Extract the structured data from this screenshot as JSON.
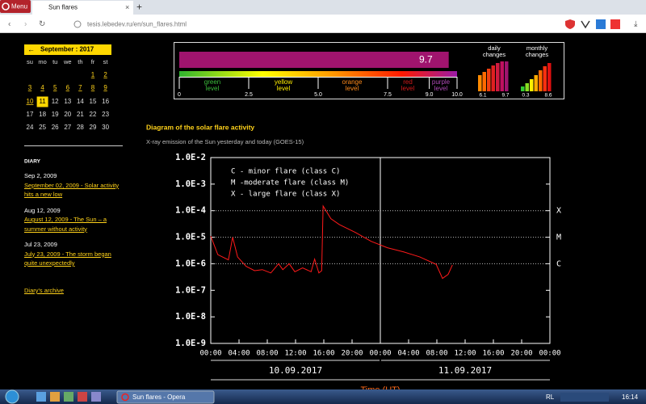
{
  "browser": {
    "menu": "Menu",
    "tab_title": "Sun flares",
    "new_tab": "+",
    "url": "tesis.lebedev.ru/en/sun_flares.html"
  },
  "calendar": {
    "title": "September : 2017",
    "weekdays": [
      "su",
      "mo",
      "tu",
      "we",
      "th",
      "fr",
      "st"
    ],
    "weeks": [
      [
        null,
        null,
        null,
        null,
        null,
        "1",
        "2"
      ],
      [
        "3",
        "4",
        "5",
        "6",
        "7",
        "8",
        "9"
      ],
      [
        "10",
        "11",
        "12",
        "13",
        "14",
        "15",
        "16"
      ],
      [
        "17",
        "18",
        "19",
        "20",
        "21",
        "22",
        "23"
      ],
      [
        "24",
        "25",
        "26",
        "27",
        "28",
        "29",
        "30"
      ]
    ],
    "linked_days": [
      1,
      2,
      3,
      4,
      5,
      6,
      7,
      8,
      9,
      10
    ],
    "current_day": 11
  },
  "diary": {
    "heading": "DIARY",
    "entries": [
      {
        "date": "Sep 2, 2009",
        "title": "September 02, 2009 - Solar activity hits a new low"
      },
      {
        "date": "Aug 12, 2009",
        "title": "August 12, 2009 - The Sun – a summer without activity"
      },
      {
        "date": "Jul 23, 2009",
        "title": "July 23, 2009 - The storm began quite unexpectedly"
      }
    ],
    "archive": "Diary's archive"
  },
  "index_panel": {
    "value": 9.7,
    "lim": [
      0,
      10
    ],
    "ticks": [
      0,
      2.5,
      {
        "value": 5,
        "label": "5.0"
      },
      7.5,
      {
        "value": 9,
        "label": "9.0"
      },
      {
        "value": 10,
        "label": "10.0"
      }
    ],
    "levels": [
      "green level",
      "yellow level",
      "orange level",
      "red level",
      "purple level"
    ],
    "daily": {
      "label": "daily changes",
      "min": 6.1,
      "max": 9.7
    },
    "monthly": {
      "label": "monthly changes",
      "min": 0.3,
      "max": 8.6
    }
  },
  "chart_data": {
    "type": "line",
    "title": "Diagram of the solar flare activity",
    "subtitle": "X-ray emission of the Sun yesterday and today (GOES-15)",
    "x_label": "Time (UT)",
    "log_y": true,
    "xlim": [
      0,
      48
    ],
    "ylim": [
      1e-09,
      0.01
    ],
    "xticks": [
      {
        "value": 0,
        "label": "00:00"
      },
      {
        "value": 4,
        "label": "04:00"
      },
      {
        "value": 8,
        "label": "08:00"
      },
      {
        "value": 12,
        "label": "12:00"
      },
      {
        "value": 16,
        "label": "16:00"
      },
      {
        "value": 20,
        "label": "20:00"
      },
      {
        "value": 24,
        "label": "00:00"
      },
      {
        "value": 28,
        "label": "04:00"
      },
      {
        "value": 32,
        "label": "08:00"
      },
      {
        "value": 36,
        "label": "12:00"
      },
      {
        "value": 40,
        "label": "16:00"
      },
      {
        "value": 44,
        "label": "20:00"
      },
      {
        "value": 48,
        "label": "00:00"
      }
    ],
    "yticks": [
      {
        "value": 0.01,
        "label": "1.0E-2"
      },
      {
        "value": 0.001,
        "label": "1.0E-3"
      },
      {
        "value": 0.0001,
        "label": "1.0E-4"
      },
      {
        "value": 1e-05,
        "label": "1.0E-5"
      },
      {
        "value": 1e-06,
        "label": "1.0E-6"
      },
      {
        "value": 1e-07,
        "label": "1.0E-7"
      },
      {
        "value": 1e-08,
        "label": "1.0E-8"
      },
      {
        "value": 1e-09,
        "label": "1.0E-9"
      }
    ],
    "levels": [
      {
        "value": 0.0001,
        "label": "X"
      },
      {
        "value": 1e-05,
        "label": "M"
      },
      {
        "value": 1e-06,
        "label": "C"
      }
    ],
    "legend_notes": [
      "C - minor flare (class C)",
      "M -moderate flare (class M)",
      "X - large flare (class X)"
    ],
    "date_labels": [
      "10.09.2017",
      "11.09.2017"
    ],
    "x": [
      0,
      1,
      2.5,
      3.1,
      3.8,
      5,
      6.2,
      7.3,
      8.5,
      9.6,
      10.2,
      11.1,
      11.9,
      13,
      14.2,
      14.7,
      15.3,
      15.7,
      15.9,
      17,
      18.2,
      20.5,
      22.7,
      25,
      27.3,
      29.6,
      31.9,
      32.8,
      33.6,
      34.2
    ],
    "series": [
      {
        "name": "GOES-15",
        "color": "#ff1a1a",
        "values": [
          1.1e-05,
          2.2e-06,
          1.4e-06,
          1e-05,
          1.8e-06,
          8e-07,
          5.5e-07,
          6e-07,
          4.5e-07,
          1e-06,
          6e-07,
          1e-06,
          5e-07,
          7e-07,
          5e-07,
          1.5e-06,
          4.5e-07,
          5.5e-07,
          0.00015,
          5e-05,
          3e-05,
          1.5e-05,
          7e-06,
          4e-06,
          2.8e-06,
          1.8e-06,
          9.5e-07,
          2.8e-07,
          4e-07,
          9e-07
        ]
      }
    ]
  },
  "taskbar": {
    "window": "Sun flares - Opera",
    "lang": "RL",
    "clock": "16:14"
  }
}
